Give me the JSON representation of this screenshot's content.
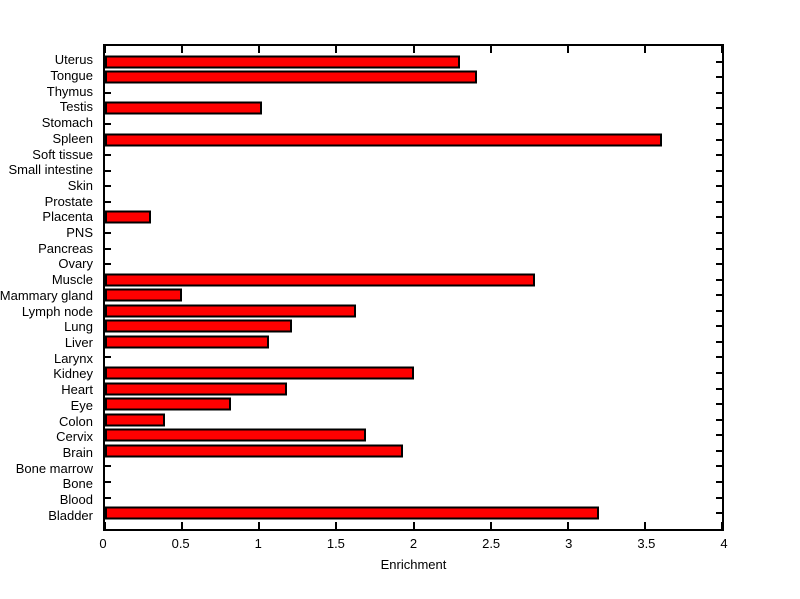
{
  "chart_data": {
    "type": "bar",
    "orientation": "horizontal",
    "title": "",
    "xlabel": "Enrichment",
    "ylabel": "",
    "xlim": [
      0,
      4
    ],
    "xticks": [
      0,
      0.5,
      1,
      1.5,
      2,
      2.5,
      3,
      3.5,
      4
    ],
    "xtick_labels": [
      "0",
      "0.5",
      "1",
      "1.5",
      "2",
      "2.5",
      "3",
      "3.5",
      "4"
    ],
    "categories_order": "top-to-bottom",
    "categories": [
      "Uterus",
      "Tongue",
      "Thymus",
      "Testis",
      "Stomach",
      "Spleen",
      "Soft tissue",
      "Small intestine",
      "Skin",
      "Prostate",
      "Placenta",
      "PNS",
      "Pancreas",
      "Ovary",
      "Muscle",
      "Mammary gland",
      "Lymph node",
      "Lung",
      "Liver",
      "Larynx",
      "Kidney",
      "Heart",
      "Eye",
      "Colon",
      "Cervix",
      "Brain",
      "Bone marrow",
      "Bone",
      "Blood",
      "Bladder"
    ],
    "values": [
      2.3,
      2.41,
      0,
      1.02,
      0,
      3.61,
      0,
      0,
      0,
      0,
      0.3,
      0,
      0,
      0,
      2.79,
      0.5,
      1.63,
      1.21,
      1.06,
      0,
      2.0,
      1.18,
      0.82,
      0.39,
      1.69,
      1.93,
      0,
      0,
      0,
      3.2
    ],
    "bar_color": "#ff0000",
    "bar_edge_color": "#000000",
    "background_color": "#ffffff",
    "grid": false,
    "legend": null
  }
}
